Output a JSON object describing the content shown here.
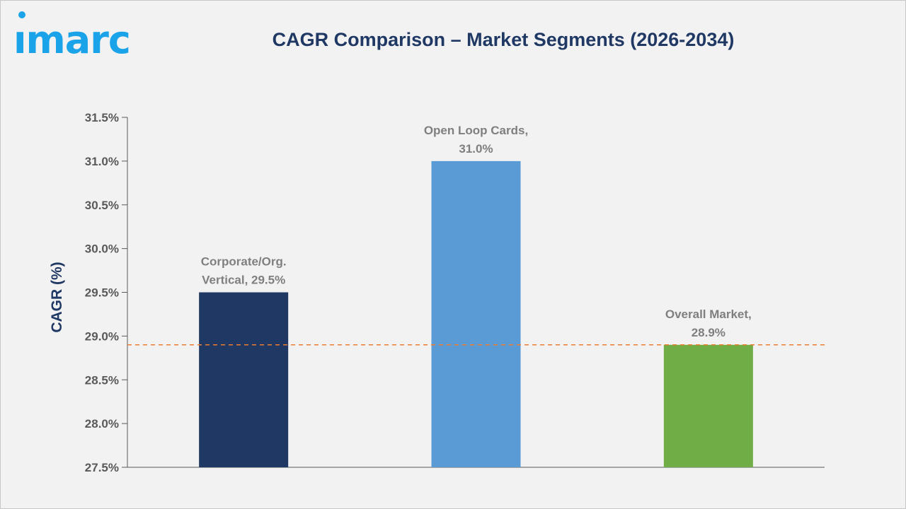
{
  "brand": {
    "logo_text": "imarc"
  },
  "chart_data": {
    "type": "bar",
    "title": "CAGR Comparison – Market Segments (2026-2034)",
    "ylabel": "CAGR (%)",
    "xlabel": "",
    "ylim": [
      27.5,
      31.5
    ],
    "y_ticks": [
      27.5,
      28.0,
      28.5,
      29.0,
      29.5,
      30.0,
      30.5,
      31.0,
      31.5
    ],
    "y_tick_labels": [
      "27.5%",
      "28.0%",
      "28.5%",
      "29.0%",
      "29.5%",
      "30.0%",
      "30.5%",
      "31.0%",
      "31.5%"
    ],
    "categories": [
      "Corporate/Org. Vertical",
      "Open Loop Cards",
      "Overall Market"
    ],
    "values": [
      29.5,
      31.0,
      28.9
    ],
    "data_labels": [
      [
        "Corporate/Org.",
        "Vertical, 29.5%"
      ],
      [
        "Open Loop Cards,",
        "31.0%"
      ],
      [
        "Overall Market,",
        "28.9%"
      ]
    ],
    "colors": [
      "#203864",
      "#5b9bd5",
      "#70ad47"
    ],
    "reference_line": {
      "value": 28.9,
      "style": "dashed",
      "color": "#ed7d31"
    },
    "grid": false,
    "legend": "none"
  }
}
